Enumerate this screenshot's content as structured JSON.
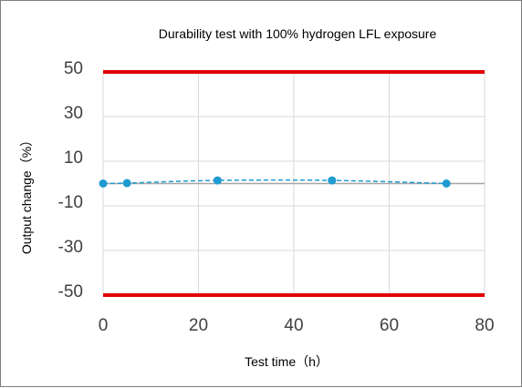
{
  "chart_data": {
    "type": "line",
    "title": "Durability test with 100% hydrogen LFL exposure",
    "xlabel": "Test time（h）",
    "ylabel": "Output change（%）",
    "xlim": [
      0,
      80
    ],
    "ylim": [
      -50,
      50
    ],
    "x_ticks": [
      0,
      20,
      40,
      60,
      80
    ],
    "y_ticks": [
      50,
      30,
      10,
      -10,
      -30,
      -50
    ],
    "grid": true,
    "legend": "none",
    "series": [
      {
        "x": [
          0,
          5,
          24,
          48,
          72
        ],
        "y": [
          0.0,
          0.2,
          1.4,
          1.4,
          0.0
        ],
        "color": "#1f9bd1",
        "style": "dashed",
        "marker": "circle"
      }
    ],
    "limit_lines": [
      {
        "y": 50,
        "color": "#e00000"
      },
      {
        "y": -50,
        "color": "#e00000"
      }
    ],
    "zero_line_color": "#a6a6a6",
    "grid_color": "#d9d9d9"
  }
}
